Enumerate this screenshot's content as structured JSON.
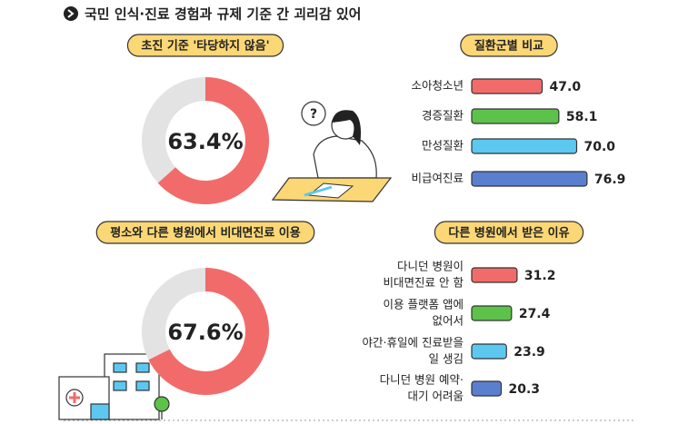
{
  "header": {
    "title": "국민 인식·진료 경험과 규제 기준 간 괴리감 있어"
  },
  "chart_data": [
    {
      "type": "donut",
      "title": "초진 기준 '타당하지 않음'",
      "values": [
        63.4
      ],
      "value_labels": [
        "63.4%"
      ],
      "color": "#f26b6b",
      "track_color": "#e3e3e3"
    },
    {
      "type": "hbar",
      "title": "질환군별 비교",
      "categories": [
        [
          "소아청소년"
        ],
        [
          "경증질환"
        ],
        [
          "만성질환"
        ],
        [
          "비급여진료"
        ]
      ],
      "values": [
        47.0,
        58.1,
        70.0,
        76.9
      ],
      "value_labels": [
        "47.0",
        "58.1",
        "70.0",
        "76.9"
      ],
      "colors": [
        "#f26b6b",
        "#5cc24a",
        "#5cc8f0",
        "#5b7fcf"
      ]
    },
    {
      "type": "donut",
      "title": "평소와 다른 병원에서 비대면진료 이용",
      "values": [
        67.6
      ],
      "value_labels": [
        "67.6%"
      ],
      "color": "#f26b6b",
      "track_color": "#e3e3e3"
    },
    {
      "type": "hbar",
      "title": "다른 병원에서 받은 이유",
      "categories": [
        [
          "다니던 병원이",
          "비대면진료 안 함"
        ],
        [
          "이용 플랫폼 앱에",
          "없어서"
        ],
        [
          "야간·휴일에 진료받을",
          "일 생김"
        ],
        [
          "다니던 병원 예약·",
          "대기 어려움"
        ]
      ],
      "values": [
        31.2,
        27.4,
        23.9,
        20.3
      ],
      "colors": [
        "#f26b6b",
        "#5cc24a",
        "#5cc8f0",
        "#5b7fcf"
      ]
    }
  ]
}
